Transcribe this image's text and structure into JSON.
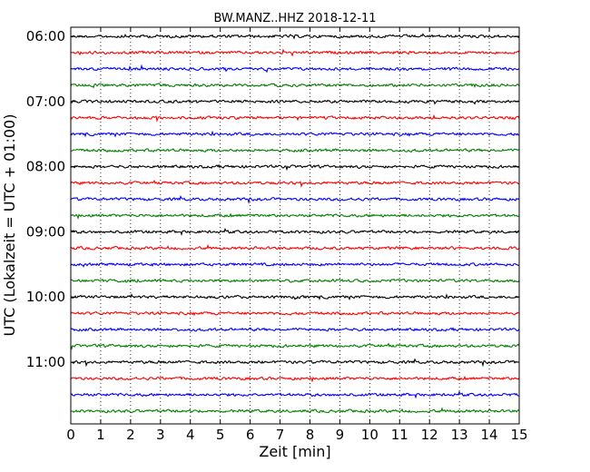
{
  "chart_data": {
    "type": "line",
    "title": "BW.MANZ..HHZ 2018-12-11",
    "xlabel": "Zeit  [min]",
    "ylabel": "UTC (Lokalzeit = UTC + 01:00)",
    "xlim": [
      0,
      15
    ],
    "x_ticks": [
      "0",
      "1",
      "2",
      "3",
      "4",
      "5",
      "6",
      "7",
      "8",
      "9",
      "10",
      "11",
      "12",
      "13",
      "14",
      "15"
    ],
    "y_tick_labels": [
      "06:00",
      "07:00",
      "08:00",
      "09:00",
      "10:00",
      "11:00"
    ],
    "trace_interval_minutes": 15,
    "start_time": "06:00",
    "trace_count": 24,
    "trace_colors": [
      "#000000",
      "#ff0000",
      "#0000ff",
      "#008000"
    ],
    "vertical_grid": "dotted",
    "frame_color": "#000000",
    "background": "#ffffff"
  }
}
